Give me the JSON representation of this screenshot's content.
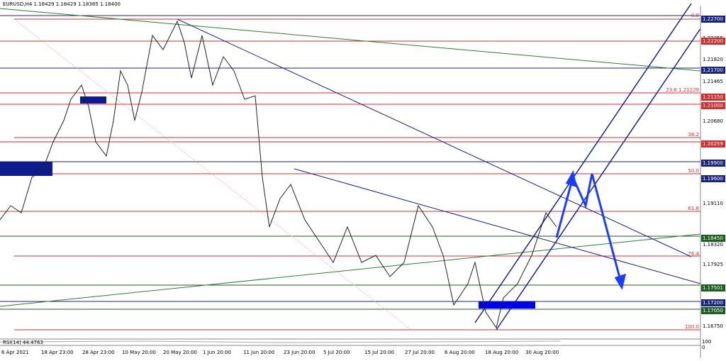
{
  "header": {
    "symbol": "EURUSD,H4  1.18429 1.18429 1.18385 1.18400"
  },
  "price_axis": [
    "1.22700",
    "1.22355",
    "1.22200",
    "1.21820",
    "1.21700",
    "1.21465",
    "1.21150",
    "1.21000",
    "1.20680",
    "1.20259",
    "1.19900",
    "1.19600",
    "1.19110",
    "1.18450",
    "1.18320",
    "1.17925",
    "1.17501",
    "1.17200",
    "1.17050",
    "1.16750"
  ],
  "fib_levels": [
    "0.0",
    "23.6 1.21229",
    "38.2",
    "50.0",
    "61.8",
    "76.4",
    "100.0"
  ],
  "time_axis": [
    "6 Apr 2021",
    "18 Apr 23:00",
    "28 Apr 23:00",
    "10 May 20:00",
    "20 May 20:00",
    "1 Jun 20:00",
    "11 Jun 20:00",
    "23 Jun 20:00",
    "5 Jul 20:00",
    "15 Jul 20:00",
    "27 Jul 20:00",
    "6 Aug 20:00",
    "18 Aug 20:00",
    "30 Aug 20:00"
  ],
  "indicator": {
    "label": "RSI(14) 44.4763",
    "axis": [
      "100",
      "0"
    ]
  }
}
